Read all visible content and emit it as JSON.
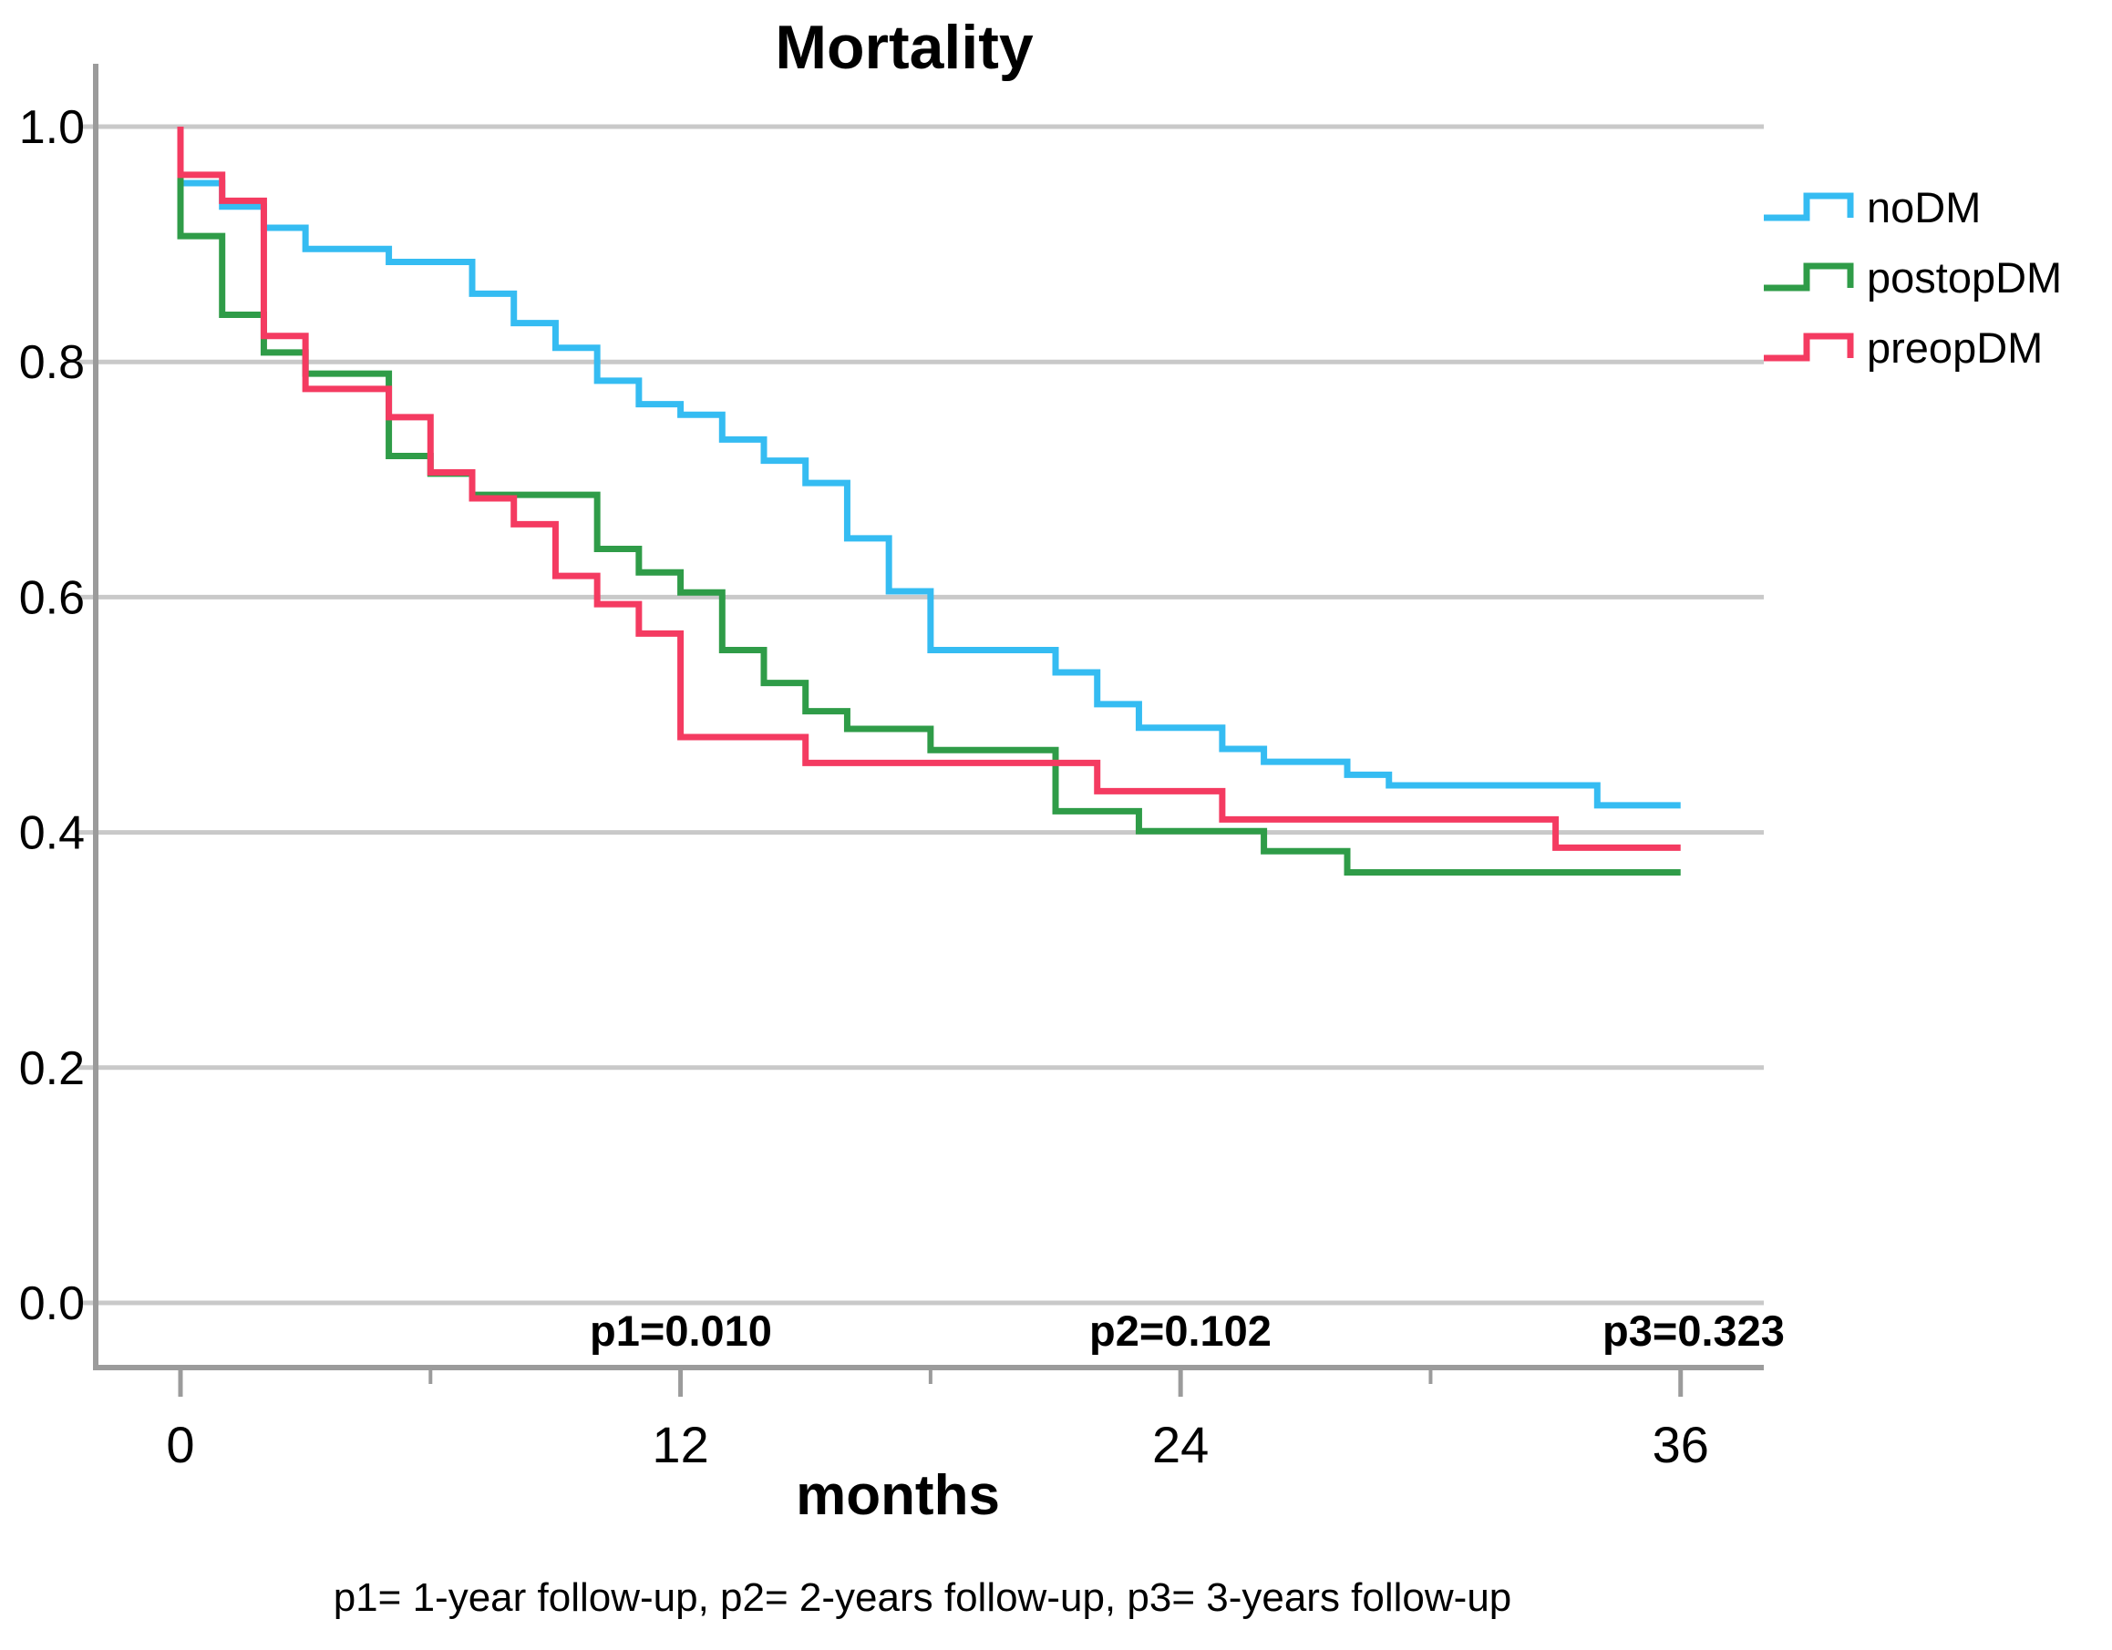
{
  "title": "Mortality",
  "colors": {
    "axis": "#9B9B9B",
    "grid": "#C9C9C9",
    "text": "#000000",
    "noDM": "#35BCF2",
    "postopDM": "#2F9C48",
    "preopDM": "#F43B61"
  },
  "chart_data": {
    "type": "step_line",
    "subtype": "kaplan-meier-survival",
    "title": "Mortality",
    "xlabel": "months",
    "ylabel": "",
    "xlim": [
      0,
      36
    ],
    "ylim": [
      0.0,
      1.0
    ],
    "grid": true,
    "legend_position": "right-top",
    "x_tick_values": [
      0,
      12,
      24,
      36
    ],
    "x_tick_labels": [
      "0",
      "12",
      "24",
      "36"
    ],
    "x_minor_tick_values": [
      6,
      18,
      30
    ],
    "y_tick_values": [
      1.0,
      0.8,
      0.6,
      0.4,
      0.2,
      0.0
    ],
    "y_tick_labels": [
      "1.0",
      "0.8",
      "0.6",
      "0.4",
      "0.2",
      "0.0"
    ],
    "series": [
      {
        "name": "noDM",
        "color": "#35BCF2",
        "start": [
          0,
          1.0
        ],
        "end_x": 36,
        "points": [
          [
            0,
            0.952
          ],
          [
            1,
            0.932
          ],
          [
            2,
            0.914
          ],
          [
            3,
            0.896
          ],
          [
            5,
            0.885
          ],
          [
            7,
            0.858
          ],
          [
            8,
            0.833
          ],
          [
            9,
            0.812
          ],
          [
            10,
            0.784
          ],
          [
            11,
            0.764
          ],
          [
            12,
            0.755
          ],
          [
            13,
            0.734
          ],
          [
            14,
            0.716
          ],
          [
            15,
            0.697
          ],
          [
            16,
            0.65
          ],
          [
            17,
            0.605
          ],
          [
            18,
            0.555
          ],
          [
            21,
            0.536
          ],
          [
            22,
            0.509
          ],
          [
            23,
            0.489
          ],
          [
            25,
            0.471
          ],
          [
            26,
            0.46
          ],
          [
            28,
            0.449
          ],
          [
            29,
            0.44
          ],
          [
            34,
            0.423
          ]
        ]
      },
      {
        "name": "postopDM",
        "color": "#2F9C48",
        "start": [
          0,
          1.0
        ],
        "end_x": 36,
        "points": [
          [
            0,
            0.907
          ],
          [
            1,
            0.84
          ],
          [
            2,
            0.808
          ],
          [
            3,
            0.79
          ],
          [
            5,
            0.72
          ],
          [
            6,
            0.705
          ],
          [
            7,
            0.687
          ],
          [
            10,
            0.641
          ],
          [
            11,
            0.621
          ],
          [
            12,
            0.604
          ],
          [
            13,
            0.555
          ],
          [
            14,
            0.527
          ],
          [
            15,
            0.503
          ],
          [
            16,
            0.488
          ],
          [
            18,
            0.47
          ],
          [
            21,
            0.418
          ],
          [
            23,
            0.401
          ],
          [
            26,
            0.384
          ],
          [
            28,
            0.366
          ]
        ]
      },
      {
        "name": "preopDM",
        "color": "#F43B61",
        "start": [
          0,
          1.0
        ],
        "end_x": 36,
        "points": [
          [
            0,
            0.959
          ],
          [
            1,
            0.937
          ],
          [
            2,
            0.822
          ],
          [
            3,
            0.777
          ],
          [
            5,
            0.753
          ],
          [
            6,
            0.706
          ],
          [
            7,
            0.684
          ],
          [
            8,
            0.662
          ],
          [
            9,
            0.618
          ],
          [
            10,
            0.594
          ],
          [
            11,
            0.569
          ],
          [
            12,
            0.481
          ],
          [
            15,
            0.459
          ],
          [
            22,
            0.435
          ],
          [
            25,
            0.411
          ],
          [
            33,
            0.387
          ]
        ]
      }
    ],
    "annotations": [
      {
        "id": "p1",
        "text": "p1=0.010",
        "x": 12
      },
      {
        "id": "p2",
        "text": "p2=0.102",
        "x": 24
      },
      {
        "id": "p3",
        "text": "p3=0.323",
        "x": 36
      }
    ],
    "footnote": "p1= 1-year follow-up, p2= 2-years follow-up, p3= 3-years follow-up"
  }
}
